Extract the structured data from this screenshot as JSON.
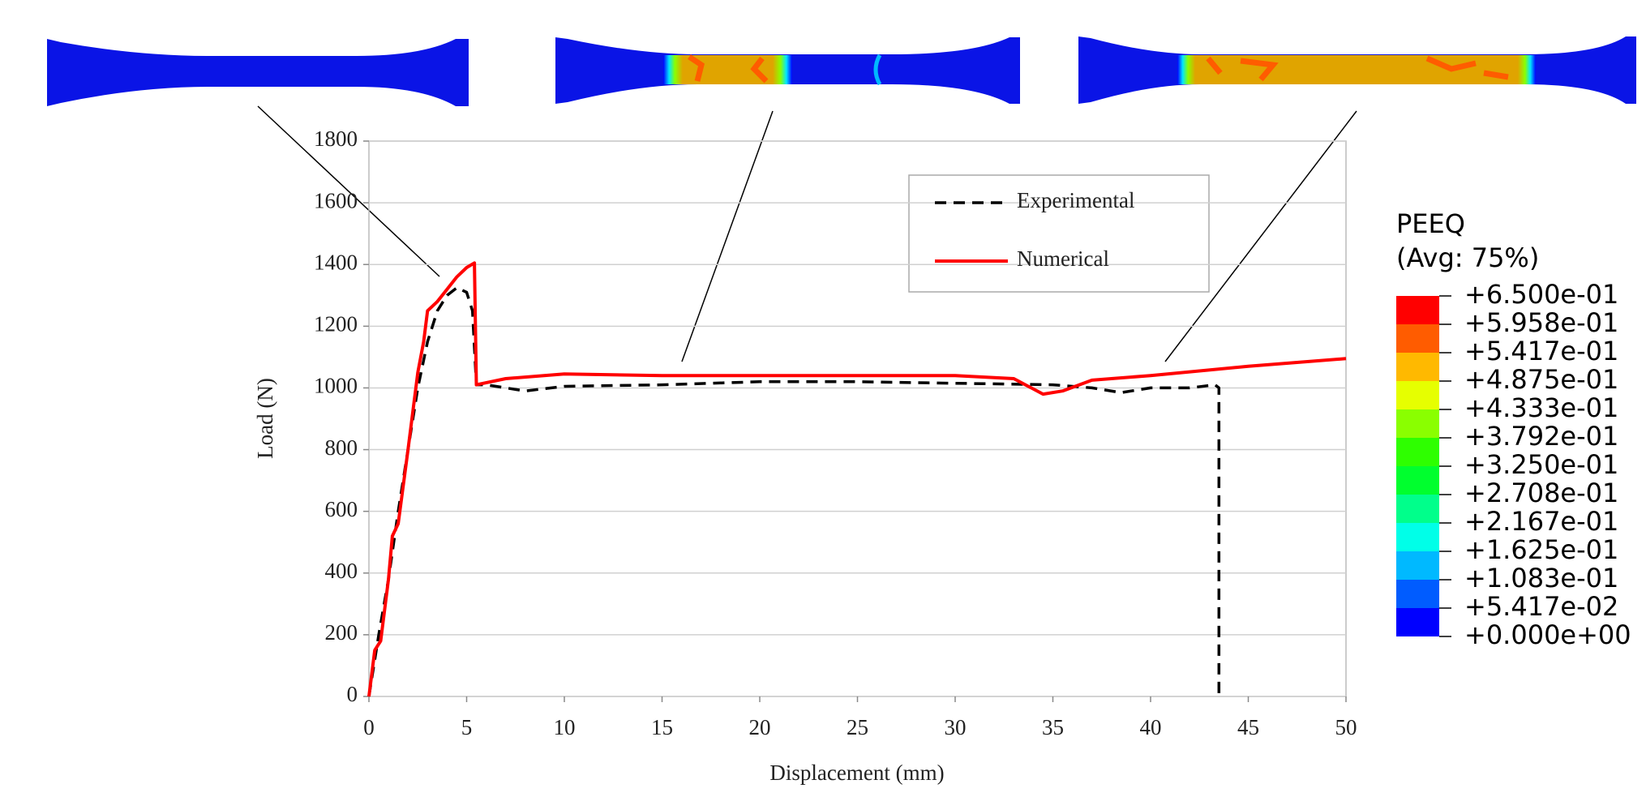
{
  "chart_data": {
    "type": "line",
    "x_label": "Displacement (mm)",
    "y_label": "Load (N)",
    "xlim": [
      0,
      50
    ],
    "xticks": [
      0,
      5,
      10,
      15,
      20,
      25,
      30,
      35,
      40,
      45,
      50
    ],
    "ylim": [
      0,
      1800
    ],
    "yticks": [
      0,
      200,
      400,
      600,
      800,
      1000,
      1200,
      1400,
      1600,
      1800
    ],
    "grid": true,
    "legend": "upper right",
    "series": [
      {
        "name": "Experimental",
        "color": "#000000",
        "dash": true,
        "x": [
          0,
          0.5,
          1,
          1.5,
          2,
          2.5,
          3,
          3.5,
          4,
          4.5,
          5,
          5.3,
          5.5,
          6,
          7,
          8,
          10,
          15,
          20,
          25,
          30,
          35,
          37,
          38.5,
          40,
          42,
          43.3,
          43.5,
          43.5
        ],
        "values": [
          0,
          200,
          380,
          600,
          800,
          1000,
          1150,
          1250,
          1300,
          1325,
          1310,
          1250,
          1010,
          1010,
          1000,
          990,
          1005,
          1010,
          1020,
          1020,
          1015,
          1010,
          1000,
          985,
          1000,
          1000,
          1010,
          1000,
          0
        ]
      },
      {
        "name": "Numerical",
        "color": "#ff0000",
        "dash": false,
        "x": [
          0,
          0.3,
          0.6,
          1,
          1.2,
          1.5,
          2,
          2.5,
          2.8,
          3,
          3.5,
          4,
          4.5,
          5,
          5.4,
          5.5,
          7,
          10,
          15,
          20,
          25,
          30,
          33,
          34.5,
          35.5,
          37,
          40,
          45,
          50
        ],
        "values": [
          0,
          150,
          180,
          380,
          520,
          560,
          800,
          1050,
          1150,
          1250,
          1280,
          1320,
          1360,
          1390,
          1405,
          1010,
          1030,
          1045,
          1040,
          1040,
          1040,
          1040,
          1030,
          980,
          990,
          1025,
          1040,
          1070,
          1095
        ]
      }
    ]
  },
  "contour_legend": {
    "title": [
      "PEEQ",
      "(Avg: 75%)"
    ],
    "labels": [
      "+6.500e-01",
      "+5.958e-01",
      "+5.417e-01",
      "+4.875e-01",
      "+4.333e-01",
      "+3.792e-01",
      "+3.250e-01",
      "+2.708e-01",
      "+2.167e-01",
      "+1.625e-01",
      "+1.083e-01",
      "+5.417e-02",
      "+0.000e+00"
    ],
    "colors": [
      "#ff0000",
      "#ff5c00",
      "#ffb900",
      "#e6ff00",
      "#8aff00",
      "#2eff00",
      "#00ff2e",
      "#00ff8b",
      "#00ffe8",
      "#00b9ff",
      "#005cff",
      "#0000ff"
    ]
  }
}
